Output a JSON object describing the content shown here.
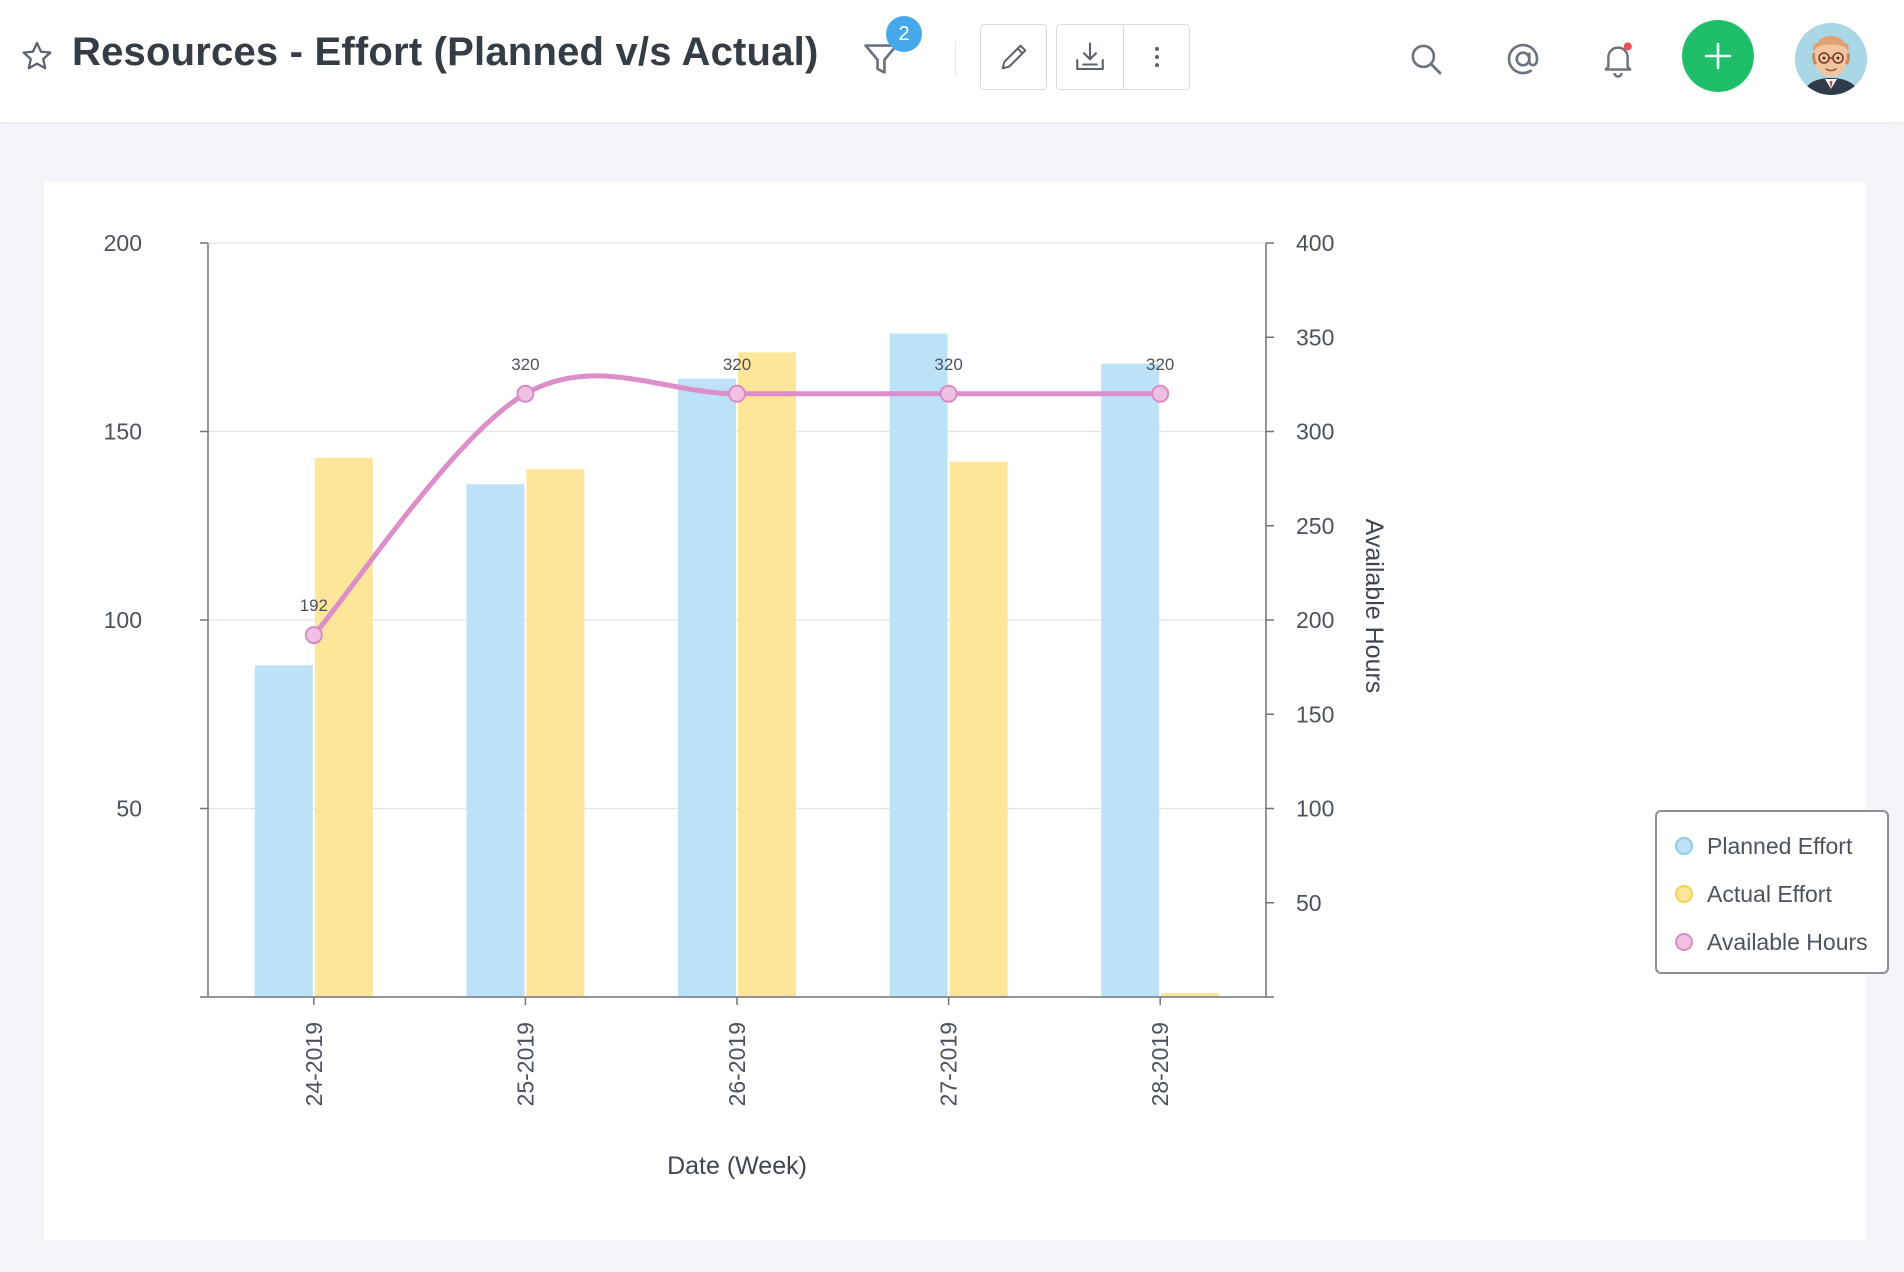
{
  "header": {
    "title": "Resources - Effort (Planned v/s Actual)",
    "filter_count": "2",
    "icons": [
      "star-icon",
      "filter-icon",
      "pencil-icon",
      "download-icon",
      "more-vertical-icon",
      "search-icon",
      "at-icon",
      "bell-icon",
      "plus-icon"
    ],
    "accent_colors": {
      "add_button": "#1fbf6a",
      "badge": "#45a8ea",
      "notification_dot": "#f05050"
    }
  },
  "chart_data": {
    "type": "bar",
    "categories": [
      "24-2019",
      "25-2019",
      "26-2019",
      "27-2019",
      "28-2019"
    ],
    "xlabel": "Date (Week)",
    "ylabel": "",
    "y2label": "Available Hours",
    "ylim": [
      0,
      200
    ],
    "y2lim": [
      0,
      400
    ],
    "yticks": [
      50,
      100,
      150,
      200
    ],
    "y2ticks": [
      50,
      100,
      150,
      200,
      250,
      300,
      350,
      400
    ],
    "grid": true,
    "legend_position": "right",
    "series": [
      {
        "name": "Planned Effort",
        "type": "bar",
        "axis": "left",
        "color": "#bde2f7",
        "values": [
          88,
          136,
          164,
          176,
          168
        ]
      },
      {
        "name": "Actual Effort",
        "type": "bar",
        "axis": "left",
        "color": "#fde59a",
        "values": [
          143,
          140,
          171,
          142,
          1
        ]
      },
      {
        "name": "Available Hours",
        "type": "line",
        "axis": "right",
        "color": "#dc8ec8",
        "values": [
          192,
          320,
          320,
          320,
          320
        ],
        "data_labels": [
          "192",
          "320",
          "320",
          "320",
          "320"
        ]
      }
    ]
  }
}
